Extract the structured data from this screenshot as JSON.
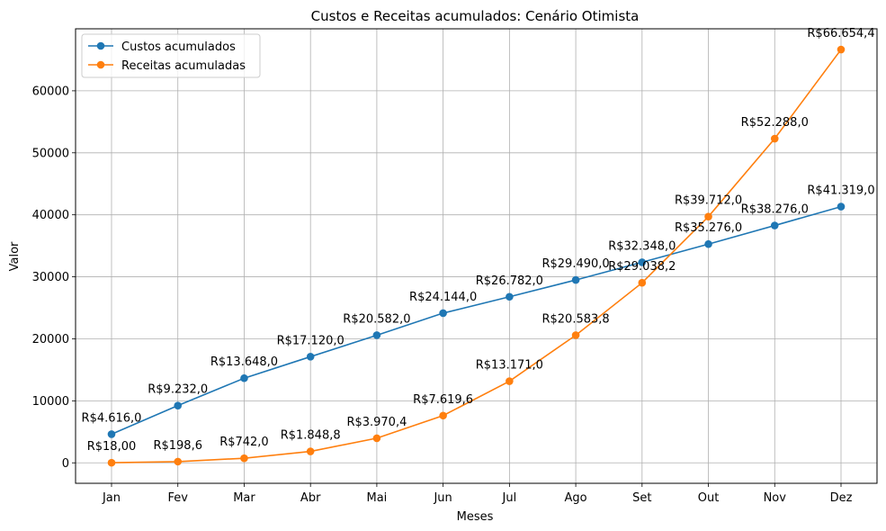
{
  "chart_data": {
    "type": "line",
    "title": "Custos e Receitas acumulados: Cenário Otimista",
    "xlabel": "Meses",
    "ylabel": "Valor",
    "categories": [
      "Jan",
      "Fev",
      "Mar",
      "Abr",
      "Mai",
      "Jun",
      "Jul",
      "Ago",
      "Set",
      "Out",
      "Nov",
      "Dez"
    ],
    "ylim": [
      -3300,
      70000
    ],
    "yticks": [
      0,
      10000,
      20000,
      30000,
      40000,
      50000,
      60000
    ],
    "ytick_labels": [
      "0",
      "10000",
      "20000",
      "30000",
      "40000",
      "50000",
      "60000"
    ],
    "grid": true,
    "legend_position": "top-left",
    "series": [
      {
        "name": "Custos acumulados",
        "color": "#1f77b4",
        "values": [
          4616,
          9232,
          13648,
          17120,
          20582,
          24144,
          26782,
          29490,
          32348,
          35276,
          38276,
          41319
        ],
        "labels": [
          "R$4.616,0",
          "R$9.232,0",
          "R$13.648,0",
          "R$17.120,0",
          "R$20.582,0",
          "R$24.144,0",
          "R$26.782,0",
          "R$29.490,0",
          "R$32.348,0",
          "R$35.276,0",
          "R$38.276,0",
          "R$41.319,0"
        ]
      },
      {
        "name": "Receitas acumuladas",
        "color": "#ff7f0e",
        "values": [
          18,
          198.6,
          742,
          1848.8,
          3970.4,
          7619.6,
          13171,
          20583.8,
          29038.2,
          39712,
          52288,
          66654.4
        ],
        "labels": [
          "R$18,00",
          "R$198,6",
          "R$742,0",
          "R$1.848,8",
          "R$3.970,4",
          "R$7.619,6",
          "R$13.171,0",
          "R$20.583,8",
          "R$29.038,2",
          "R$39.712,0",
          "R$52.288,0",
          "R$66.654,4"
        ]
      }
    ]
  }
}
